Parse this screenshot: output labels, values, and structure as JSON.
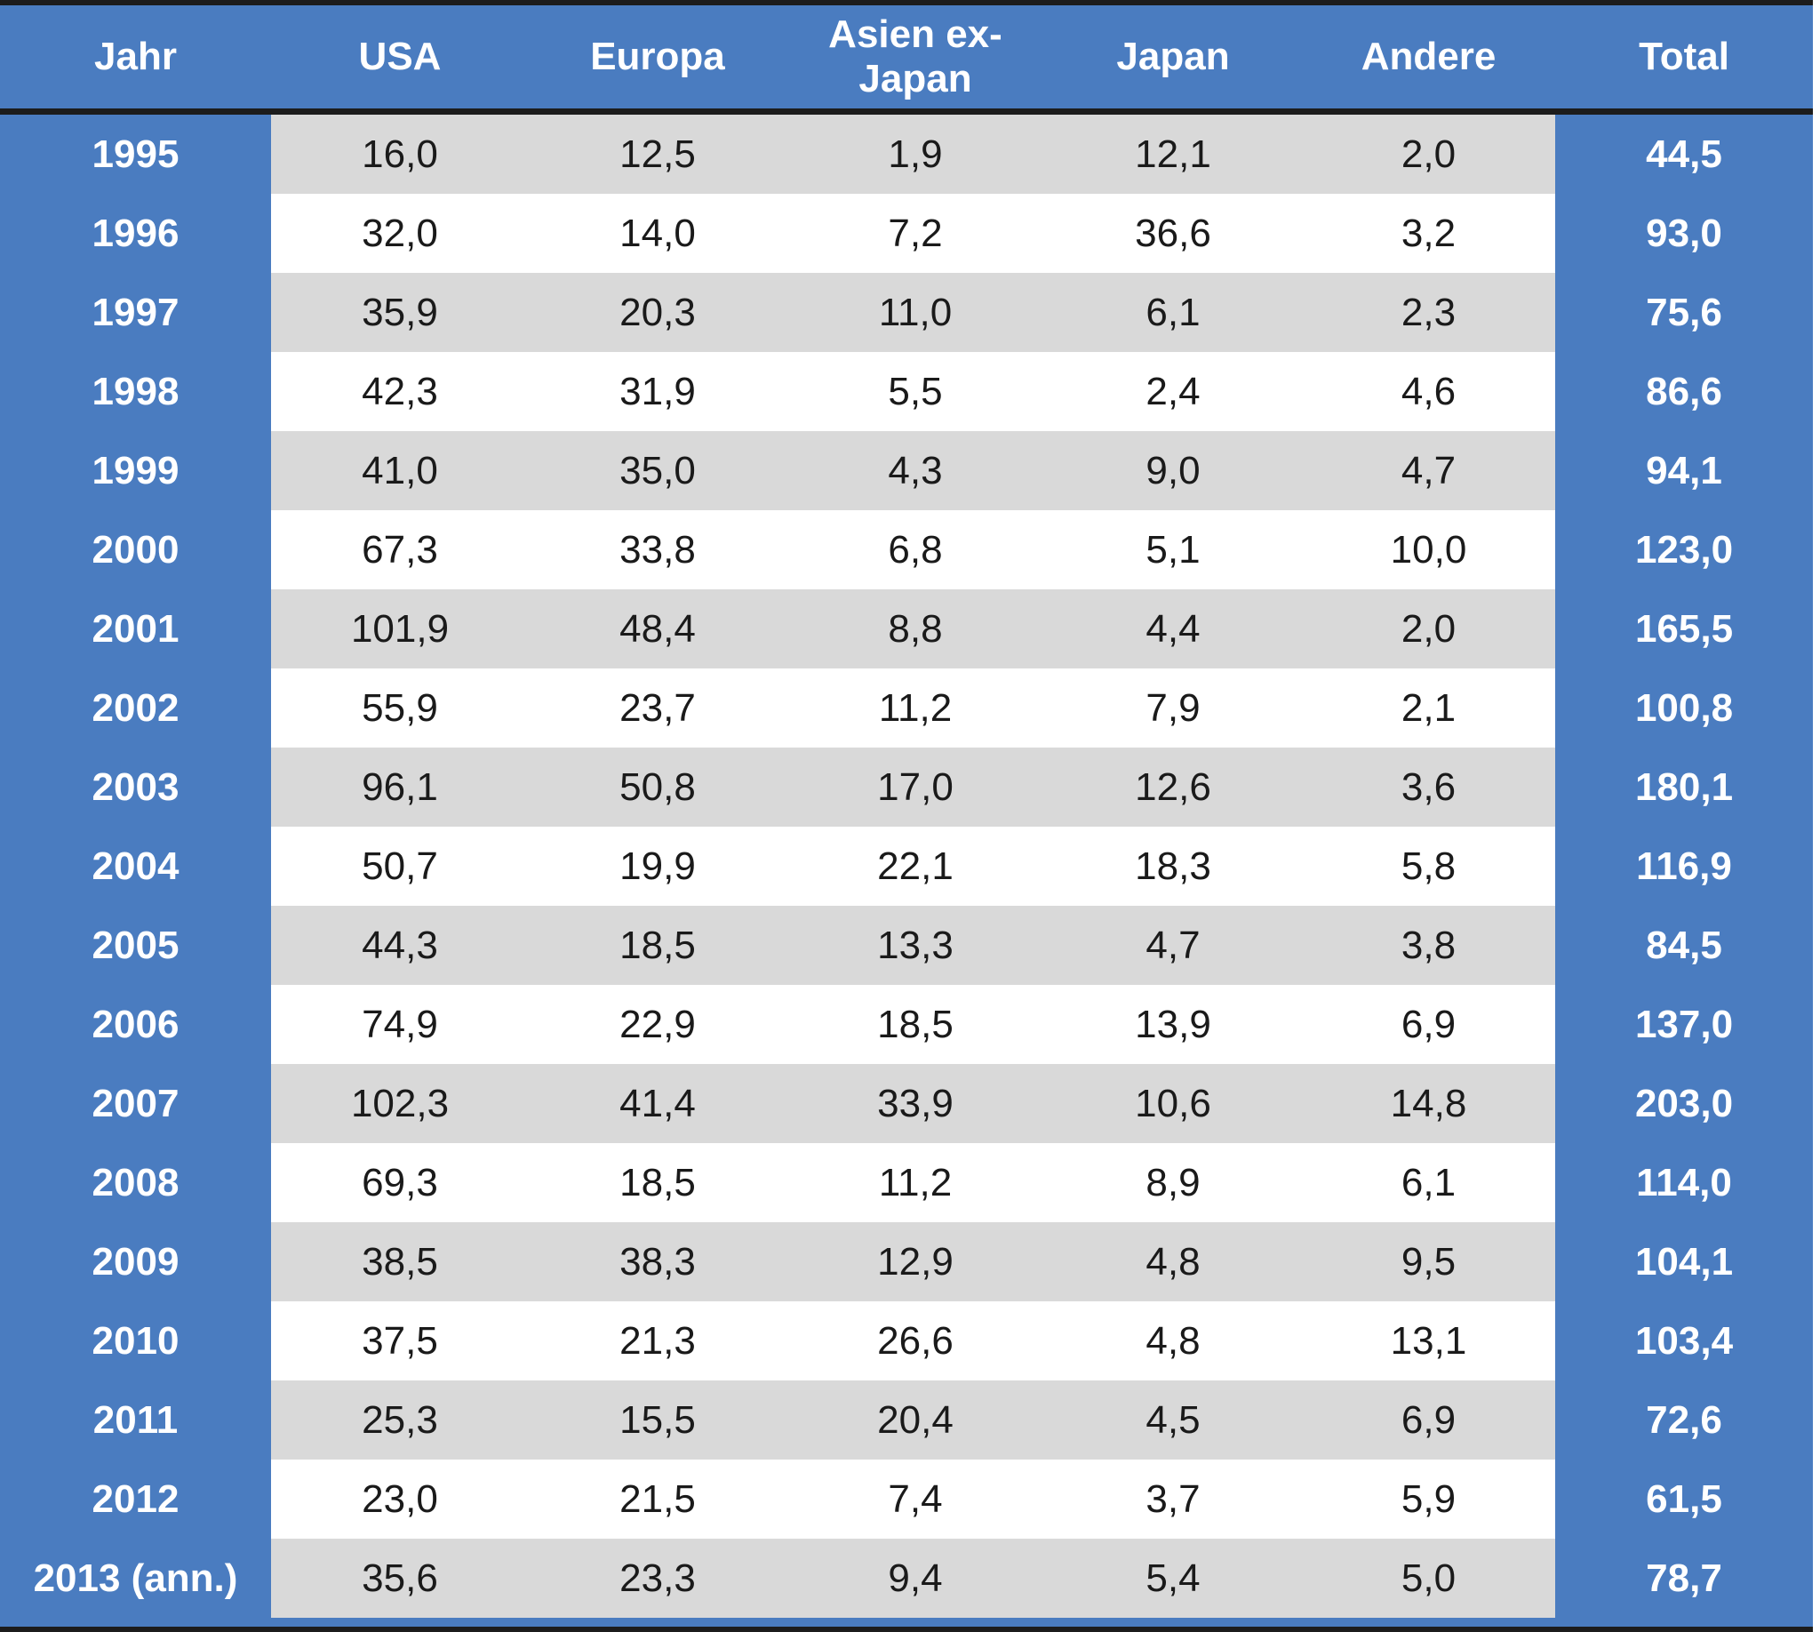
{
  "chart_data": {
    "type": "table",
    "columns": [
      "Jahr",
      "USA",
      "Europa",
      "Asien ex-Japan",
      "Japan",
      "Andere",
      "Total"
    ],
    "rows": [
      [
        "1995",
        "16,0",
        "12,5",
        "1,9",
        "12,1",
        "2,0",
        "44,5"
      ],
      [
        "1996",
        "32,0",
        "14,0",
        "7,2",
        "36,6",
        "3,2",
        "93,0"
      ],
      [
        "1997",
        "35,9",
        "20,3",
        "11,0",
        "6,1",
        "2,3",
        "75,6"
      ],
      [
        "1998",
        "42,3",
        "31,9",
        "5,5",
        "2,4",
        "4,6",
        "86,6"
      ],
      [
        "1999",
        "41,0",
        "35,0",
        "4,3",
        "9,0",
        "4,7",
        "94,1"
      ],
      [
        "2000",
        "67,3",
        "33,8",
        "6,8",
        "5,1",
        "10,0",
        "123,0"
      ],
      [
        "2001",
        "101,9",
        "48,4",
        "8,8",
        "4,4",
        "2,0",
        "165,5"
      ],
      [
        "2002",
        "55,9",
        "23,7",
        "11,2",
        "7,9",
        "2,1",
        "100,8"
      ],
      [
        "2003",
        "96,1",
        "50,8",
        "17,0",
        "12,6",
        "3,6",
        "180,1"
      ],
      [
        "2004",
        "50,7",
        "19,9",
        "22,1",
        "18,3",
        "5,8",
        "116,9"
      ],
      [
        "2005",
        "44,3",
        "18,5",
        "13,3",
        "4,7",
        "3,8",
        "84,5"
      ],
      [
        "2006",
        "74,9",
        "22,9",
        "18,5",
        "13,9",
        "6,9",
        "137,0"
      ],
      [
        "2007",
        "102,3",
        "41,4",
        "33,9",
        "10,6",
        "14,8",
        "203,0"
      ],
      [
        "2008",
        "69,3",
        "18,5",
        "11,2",
        "8,9",
        "6,1",
        "114,0"
      ],
      [
        "2009",
        "38,5",
        "38,3",
        "12,9",
        "4,8",
        "9,5",
        "104,1"
      ],
      [
        "2010",
        "37,5",
        "21,3",
        "26,6",
        "4,8",
        "13,1",
        "103,4"
      ],
      [
        "2011",
        "25,3",
        "15,5",
        "20,4",
        "4,5",
        "6,9",
        "72,6"
      ],
      [
        "2012",
        "23,0",
        "21,5",
        "7,4",
        "3,7",
        "5,9",
        "61,5"
      ],
      [
        "2013 (ann.)",
        "35,6",
        "23,3",
        "9,4",
        "5,4",
        "5,0",
        "78,7"
      ]
    ]
  },
  "colors": {
    "header_bg": "#4a7cc0",
    "header_text": "#ffffff",
    "row_band_gray": "#d9d9d9",
    "row_band_white": "#ffffff",
    "rule": "#1c1c1c"
  }
}
